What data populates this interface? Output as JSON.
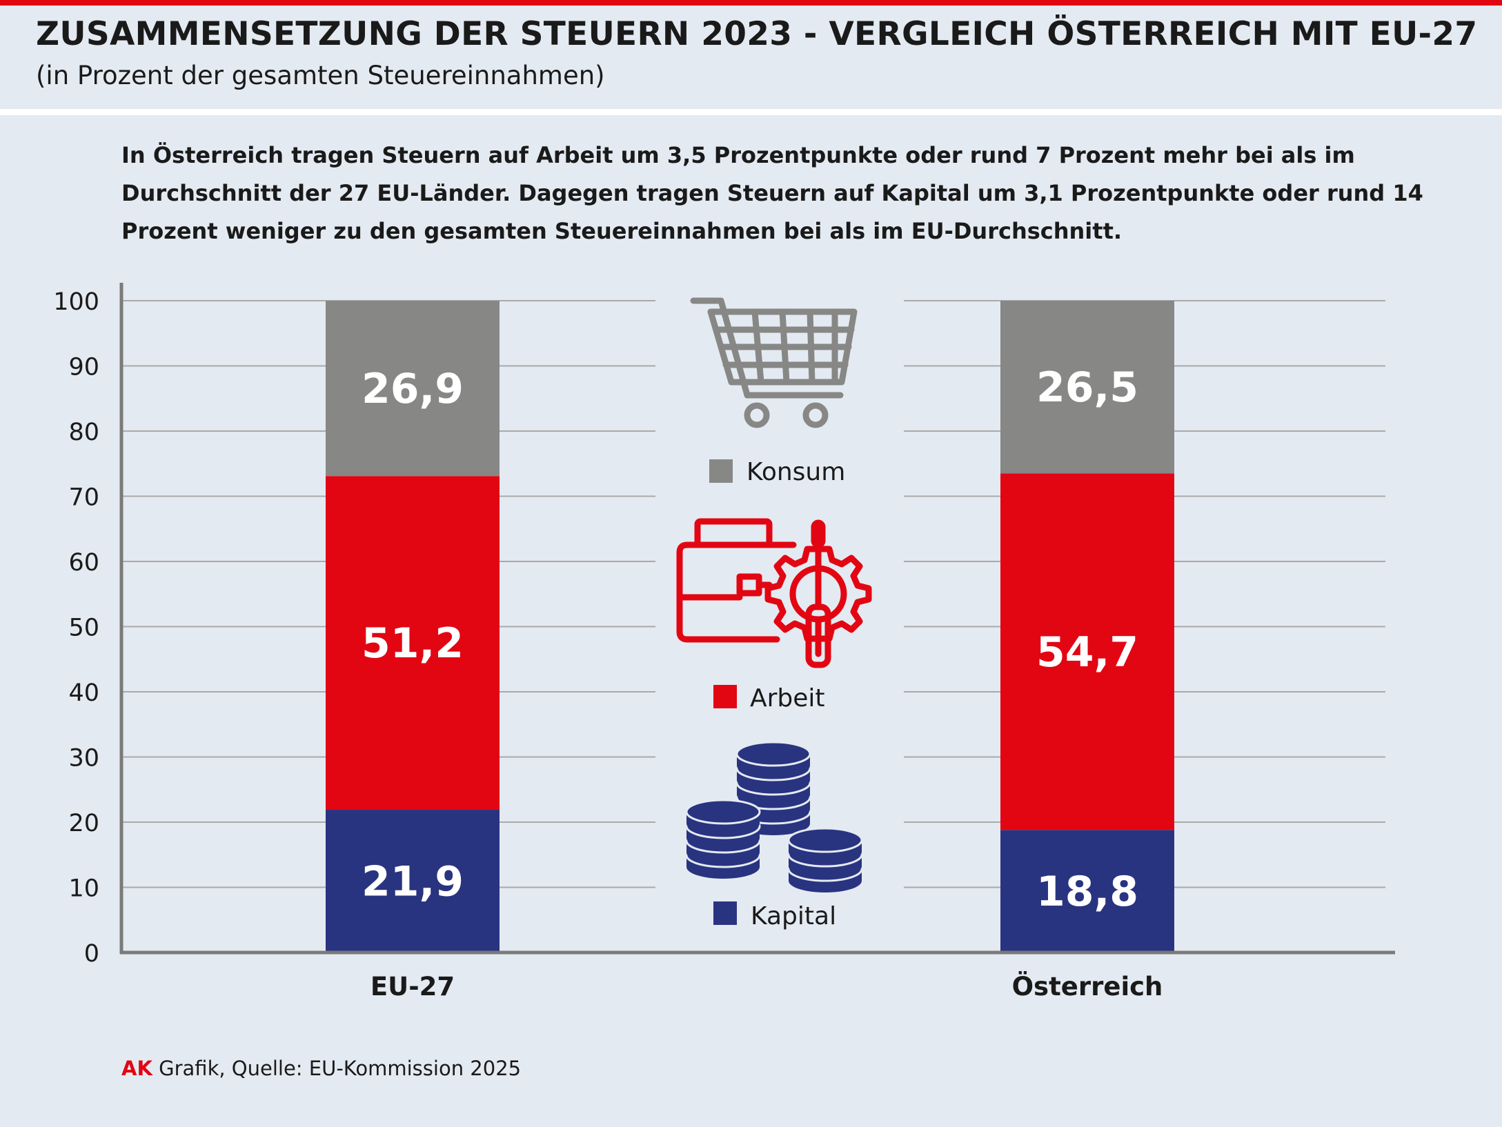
{
  "header": {
    "title": "ZUSAMMENSETZUNG DER STEUERN 2023 - VERGLEICH ÖSTERREICH MIT EU-27",
    "subtitle": "(in Prozent der gesamten Steuereinnahmen)"
  },
  "description": {
    "line1": "In Österreich tragen Steuern auf Arbeit um 3,5 Prozentpunkte oder rund 7 Prozent mehr bei als im",
    "line2": "Durchschnitt der 27 EU-Länder. Dagegen tragen Steuern auf Kapital um 3,1 Prozentpunkte oder rund 14",
    "line3": "Prozent weniger zu den gesamten Steuereinnahmen bei als im EU-Durchschnitt."
  },
  "chart_data": {
    "type": "bar",
    "stacked": true,
    "categories": [
      "EU-27",
      "Österreich"
    ],
    "series": [
      {
        "name": "Kapital",
        "values": [
          21.9,
          18.8
        ],
        "labels": [
          "21,9",
          "18,8"
        ],
        "color": "#293480"
      },
      {
        "name": "Arbeit",
        "values": [
          51.2,
          54.7
        ],
        "labels": [
          "51,2",
          "54,7"
        ],
        "color": "#e20613"
      },
      {
        "name": "Konsum",
        "values": [
          26.9,
          26.5
        ],
        "labels": [
          "26,9",
          "26,5"
        ],
        "color": "#878786"
      }
    ],
    "ylim": [
      0,
      100
    ],
    "yticks": [
      "0",
      "10",
      "20",
      "30",
      "40",
      "50",
      "60",
      "70",
      "80",
      "90",
      "100"
    ],
    "grid": true,
    "legend": {
      "placement": "center",
      "items": [
        {
          "label": "Konsum",
          "icon": "shopping-cart-icon",
          "color": "#878786"
        },
        {
          "label": "Arbeit",
          "icon": "toolbox-gear-screwdriver-icon",
          "color": "#e20613"
        },
        {
          "label": "Kapital",
          "icon": "coin-stacks-icon",
          "color": "#293480"
        }
      ]
    }
  },
  "footer": {
    "brand": "AK",
    "source": " Grafik, Quelle: EU-Kommission 2025"
  }
}
